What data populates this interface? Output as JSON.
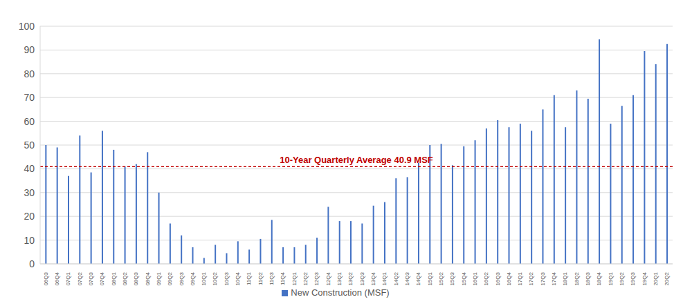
{
  "chart_data": {
    "type": "bar",
    "categories": [
      "06Q3",
      "06Q4",
      "07Q1",
      "07Q2",
      "07Q3",
      "07Q4",
      "08Q1",
      "08Q2",
      "08Q3",
      "08Q4",
      "09Q1",
      "09Q2",
      "09Q3",
      "09Q4",
      "10Q1",
      "10Q2",
      "10Q3",
      "10Q4",
      "11Q1",
      "11Q2",
      "11Q3",
      "11Q4",
      "12Q1",
      "12Q2",
      "12Q3",
      "12Q4",
      "13Q1",
      "13Q2",
      "13Q3",
      "13Q4",
      "14Q1",
      "14Q2",
      "14Q3",
      "14Q4",
      "15Q1",
      "15Q2",
      "15Q3",
      "15Q4",
      "16Q1",
      "16Q2",
      "16Q3",
      "16Q4",
      "17Q1",
      "17Q2",
      "17Q3",
      "17Q4",
      "18Q1",
      "18Q2",
      "18Q3",
      "18Q4",
      "19Q1",
      "19Q2",
      "19Q3",
      "19Q4",
      "20Q1",
      "20Q2"
    ],
    "series": [
      {
        "name": "New Construction (MSF)",
        "color": "#4472c4",
        "values": [
          50,
          49,
          37,
          54,
          38.5,
          56,
          48,
          41,
          42,
          47,
          30,
          17,
          12,
          7,
          2.5,
          8,
          4.5,
          9.5,
          6,
          10.5,
          18.5,
          7,
          7,
          8,
          11,
          24,
          18,
          18,
          17,
          24.5,
          26,
          36,
          36.5,
          42.5,
          50,
          50.5,
          41.5,
          49.5,
          52,
          57,
          60.5,
          57.5,
          59,
          56,
          65,
          71,
          57.5,
          73,
          69.5,
          94.5,
          59,
          66.5,
          71,
          89.5,
          84,
          92.5
        ]
      }
    ],
    "reference_line": {
      "value": 40.9,
      "label": "10-Year Quarterly Average 40.9 MSF",
      "color": "#c00000"
    },
    "ylim": [
      0,
      100
    ],
    "yticks": [
      0,
      10,
      20,
      30,
      40,
      50,
      60,
      70,
      80,
      90,
      100
    ],
    "grid": true,
    "legend": "bottom"
  }
}
